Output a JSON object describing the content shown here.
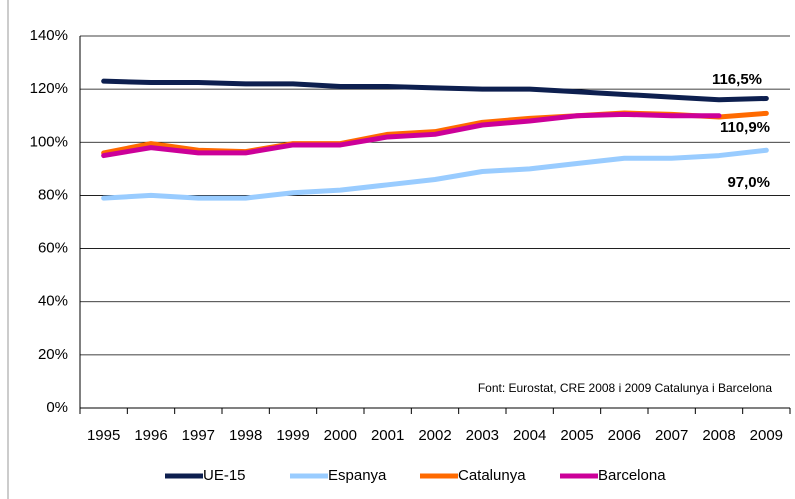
{
  "chart_data": {
    "type": "line",
    "categories": [
      "1995",
      "1996",
      "1997",
      "1998",
      "1999",
      "2000",
      "2001",
      "2002",
      "2003",
      "2004",
      "2005",
      "2006",
      "2007",
      "2008",
      "2009"
    ],
    "series": [
      {
        "name": "UE-15",
        "color": "#0d1f4f",
        "values": [
          123,
          122.5,
          122.5,
          122,
          122,
          121,
          121,
          120.5,
          120,
          120,
          119,
          118,
          117,
          116,
          116.5
        ]
      },
      {
        "name": "Espanya",
        "color": "#99ccff",
        "values": [
          79,
          80,
          79,
          79,
          81,
          82,
          84,
          86,
          89,
          90,
          92,
          94,
          94,
          95,
          97
        ]
      },
      {
        "name": "Catalunya",
        "color": "#ff6a00",
        "values": [
          96,
          99.5,
          97,
          96.5,
          99.5,
          99.5,
          103,
          104,
          107.5,
          109,
          110,
          111,
          110.5,
          109.5,
          110.9
        ]
      },
      {
        "name": "Barcelona",
        "color": "#cc0099",
        "values": [
          95,
          98,
          96,
          96,
          99,
          99,
          102,
          103,
          106.5,
          108,
          110,
          110.5,
          110,
          110,
          null
        ]
      }
    ],
    "ylim": [
      0,
      140
    ],
    "yticks": [
      {
        "value": 0,
        "label": "0%"
      },
      {
        "value": 20,
        "label": "20%"
      },
      {
        "value": 40,
        "label": "40%"
      },
      {
        "value": 60,
        "label": "60%"
      },
      {
        "value": 80,
        "label": "80%"
      },
      {
        "value": 100,
        "label": "100%"
      },
      {
        "value": 120,
        "label": "120%"
      },
      {
        "value": 140,
        "label": "140%"
      }
    ],
    "grid": true,
    "annotations": [
      "116,5%",
      "110,9%",
      "97,0%",
      "Font: Eurostat, CRE 2008 i 2009 Catalunya i Barcelona"
    ],
    "legend": "bottom"
  }
}
